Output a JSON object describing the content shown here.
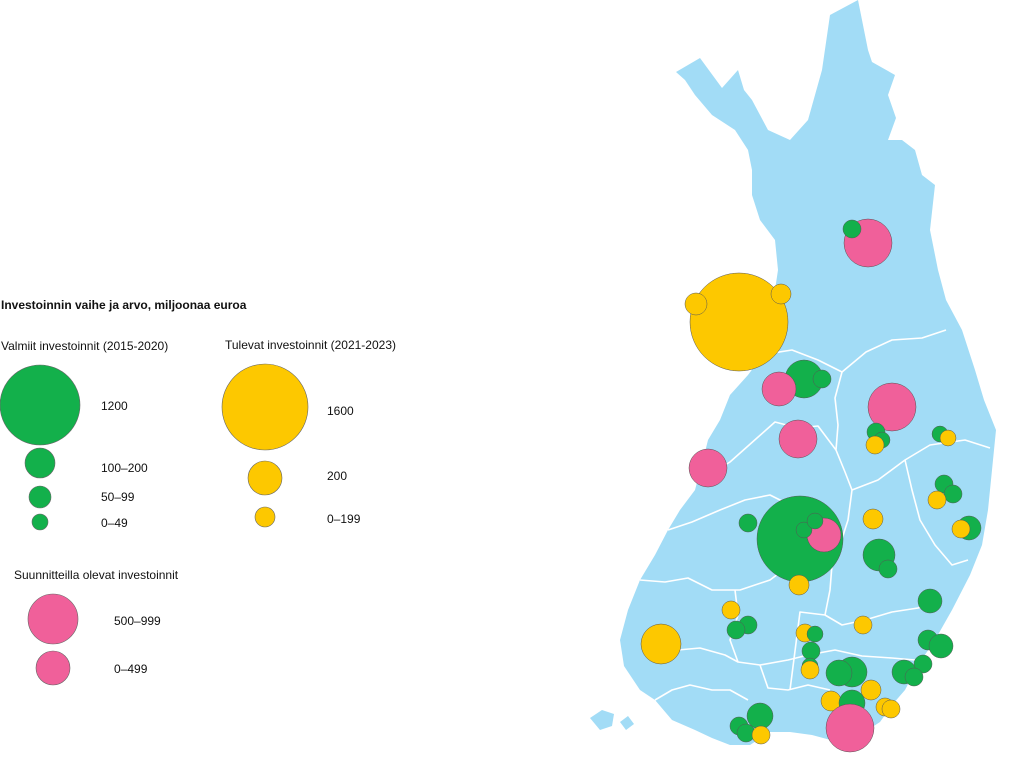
{
  "legend": {
    "title": "Investoinnin vaihe ja arvo, miljoonaa euroa",
    "completed": {
      "heading": "Valmiit investoinnit (2015-2020)",
      "color": "#13b04b",
      "items": [
        "1200",
        "100–200",
        "50–99",
        "0–49"
      ]
    },
    "upcoming": {
      "heading": "Tulevat investoinnit (2021-2023)",
      "color": "#fdc800",
      "items": [
        "1600",
        "200",
        "0–199"
      ]
    },
    "planned": {
      "heading": "Suunnitteilla olevat investoinnit",
      "color": "#f0609a",
      "items": [
        "500–999",
        "0–499"
      ]
    }
  },
  "map": {
    "land_color": "#a2dcf6",
    "border_color": "#ffffff",
    "investment_markers": {
      "completed_count": 35,
      "upcoming_count": 23,
      "planned_count": 8
    }
  }
}
